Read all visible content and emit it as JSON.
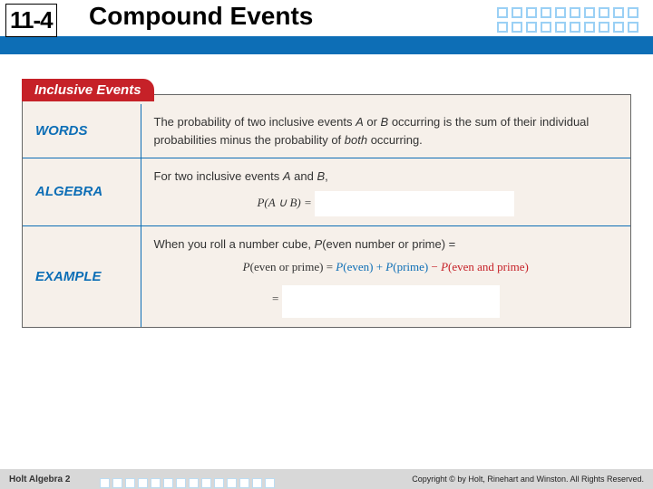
{
  "header": {
    "lesson": "11-4",
    "title": "Compound Events"
  },
  "tab": {
    "label": "Inclusive Events"
  },
  "rows": {
    "words": {
      "label": "WORDS",
      "text_a": "The probability of two inclusive events ",
      "A": "A",
      "text_b": " or ",
      "B": "B",
      "text_c": " occurring is the sum of their individual probabilities minus the probability of ",
      "both": "both",
      "text_d": " occurring."
    },
    "algebra": {
      "label": "ALGEBRA",
      "text_a": "For two inclusive events ",
      "A": "A",
      "and": " and ",
      "B": "B",
      "comma": ",",
      "formula_lhs": "P(A ∪ B) = "
    },
    "example": {
      "label": "EXAMPLE",
      "line1_a": "When you roll a number cube, ",
      "line1_b": "P",
      "line1_c": "(even number or prime) =",
      "line2_a": "P",
      "line2_b": "(even or prime) = ",
      "line2_c": "P",
      "line2_d": "(even)",
      "plus": " + ",
      "line2_e": "P",
      "line2_f": "(prime)",
      "minus": " − ",
      "line2_g": "P",
      "line2_h": "(even and prime)",
      "eq": "= "
    }
  },
  "footer": {
    "book": "Holt Algebra 2",
    "copy": "Copyright © by Holt, Rinehart and Winston. All Rights Reserved."
  },
  "colors": {
    "band": "#0d6eb6",
    "tab": "#c62128",
    "box_bg": "#f6f0ea"
  }
}
